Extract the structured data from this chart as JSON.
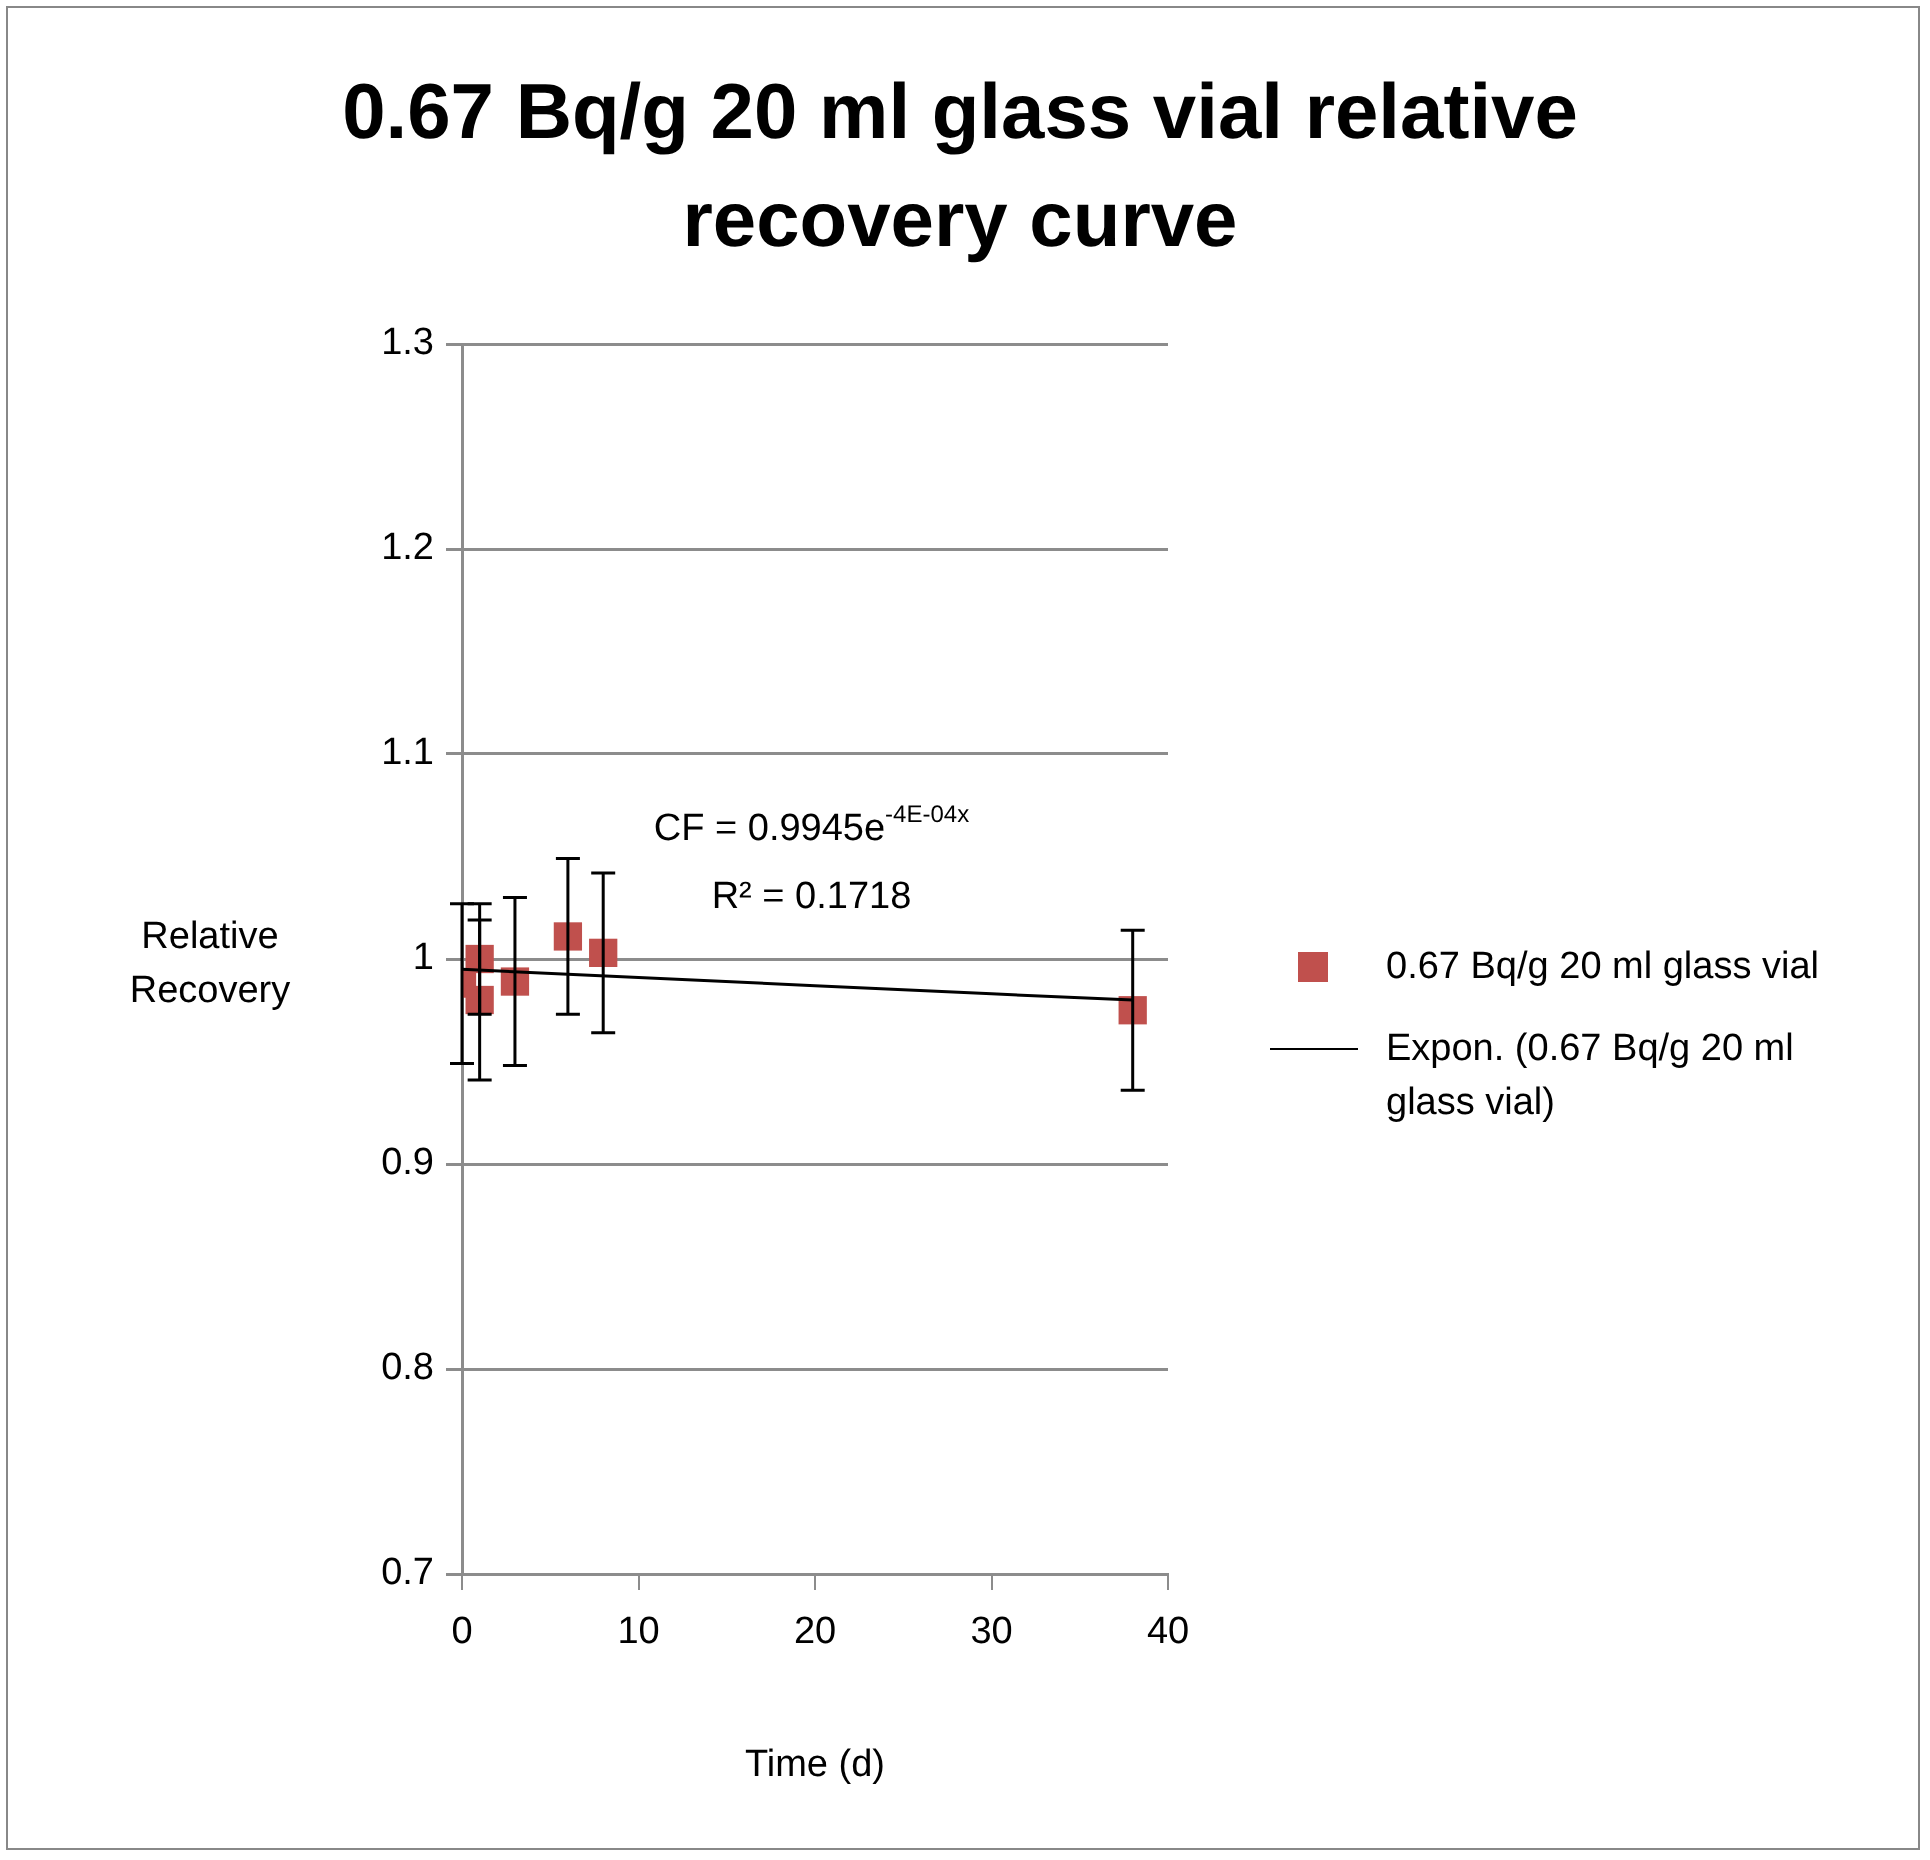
{
  "chart_data": {
    "type": "scatter",
    "title": "0.67 Bq/g 20 ml glass vial relative recovery curve",
    "xlabel": "Time (d)",
    "ylabel": "Relative Recovery",
    "xlim": [
      0,
      40
    ],
    "xticks": [
      0,
      10,
      20,
      30,
      40
    ],
    "ylim": [
      0.7,
      1.3
    ],
    "yticks": [
      0.7,
      0.8,
      0.9,
      1,
      1.1,
      1.2,
      1.3
    ],
    "grid": "y",
    "legend": "right",
    "annotations": [
      "CF = 0.9945e$^{-4E-04x}$",
      "R² = 0.1718"
    ],
    "series": [
      {
        "name": "0.67 Bq/g 20 ml glass vial",
        "type": "scatter",
        "marker": "square",
        "color": "#c0504d",
        "x": [
          0,
          1,
          1,
          3,
          6,
          8,
          38
        ],
        "values": [
          0.988,
          1.0,
          0.98,
          0.989,
          1.011,
          1.003,
          0.975
        ],
        "errors": [
          0.039,
          0.027,
          0.039,
          0.041,
          0.038,
          0.039,
          0.039
        ]
      },
      {
        "name": "Expon. (0.67 Bq/g 20 ml glass vial)",
        "type": "line",
        "marker": "none",
        "line_style": "solid",
        "color": "#000000",
        "x": [
          0,
          10,
          20,
          30,
          38
        ],
        "values": [
          0.995,
          0.991,
          0.987,
          0.983,
          0.98
        ]
      }
    ]
  }
}
